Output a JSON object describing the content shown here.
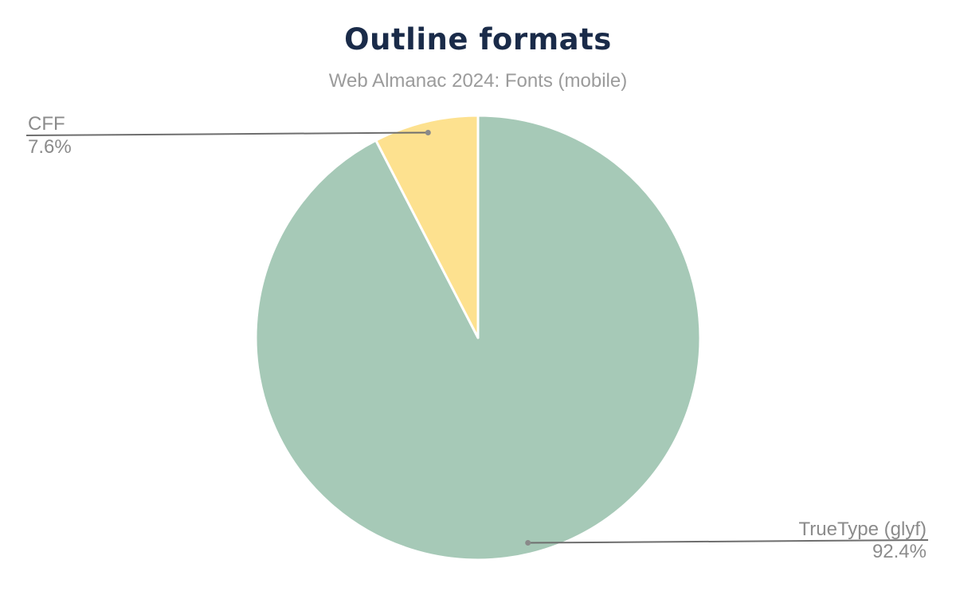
{
  "header": {
    "title": "Outline formats",
    "subtitle": "Web Almanac 2024: Fonts (mobile)"
  },
  "chart_data": {
    "type": "pie",
    "title": "Outline formats",
    "subtitle": "Web Almanac 2024: Fonts (mobile)",
    "slices": [
      {
        "label": "TrueType (glyf)",
        "value": 92.4,
        "display": "92.4%",
        "color": "#a6c9b7"
      },
      {
        "label": "CFF",
        "value": 7.6,
        "display": "7.6%",
        "color": "#fde18f"
      }
    ],
    "start_angle": "12-o-clock",
    "direction": "clockwise",
    "legend_position": "none",
    "annotations": "outside leader lines with dots, label above underline, percent below"
  },
  "colors": {
    "background": "#ffffff",
    "title": "#1a2b49",
    "subtitle": "#9b9b9b",
    "label_text": "#8b8b8b",
    "leader_line": "#6e6e6e",
    "leader_dot": "#8a8a8a",
    "slice_separator": "#ffffff"
  }
}
